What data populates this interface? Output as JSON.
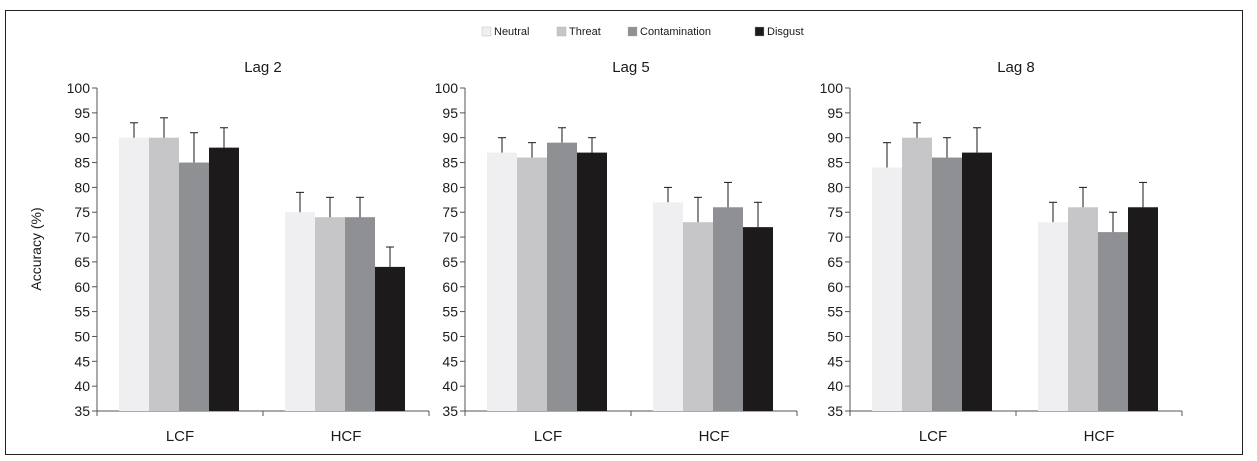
{
  "chart_data": {
    "type": "bar",
    "ylabel": "Accuracy (%)",
    "ylim": [
      35,
      100
    ],
    "yticks": [
      "35",
      "40",
      "45",
      "50",
      "55",
      "60",
      "65",
      "70",
      "75",
      "80",
      "85",
      "90",
      "95",
      "100"
    ],
    "categories": [
      "LCF",
      "HCF"
    ],
    "legend_position": "top-center",
    "series": [
      {
        "name": "Neutral",
        "color": "#efeff2"
      },
      {
        "name": "Threat",
        "color": "#c6c6c9"
      },
      {
        "name": "Contamination",
        "color": "#8f9094"
      },
      {
        "name": "Disgust",
        "color": "#1c1a1b"
      }
    ],
    "panels": [
      {
        "title": "Lag 2",
        "values": [
          [
            90,
            90,
            85,
            88
          ],
          [
            75,
            74,
            74,
            64
          ]
        ],
        "errors": [
          [
            3,
            4,
            6,
            4
          ],
          [
            4,
            4,
            4,
            4
          ]
        ]
      },
      {
        "title": "Lag 5",
        "values": [
          [
            87,
            86,
            89,
            87
          ],
          [
            77,
            73,
            76,
            72
          ]
        ],
        "errors": [
          [
            3,
            3,
            3,
            3
          ],
          [
            3,
            5,
            5,
            5
          ]
        ]
      },
      {
        "title": "Lag 8",
        "values": [
          [
            84,
            90,
            86,
            87
          ],
          [
            73,
            76,
            71,
            76
          ]
        ],
        "errors": [
          [
            5,
            3,
            4,
            5
          ],
          [
            4,
            4,
            4,
            5
          ]
        ]
      }
    ]
  }
}
